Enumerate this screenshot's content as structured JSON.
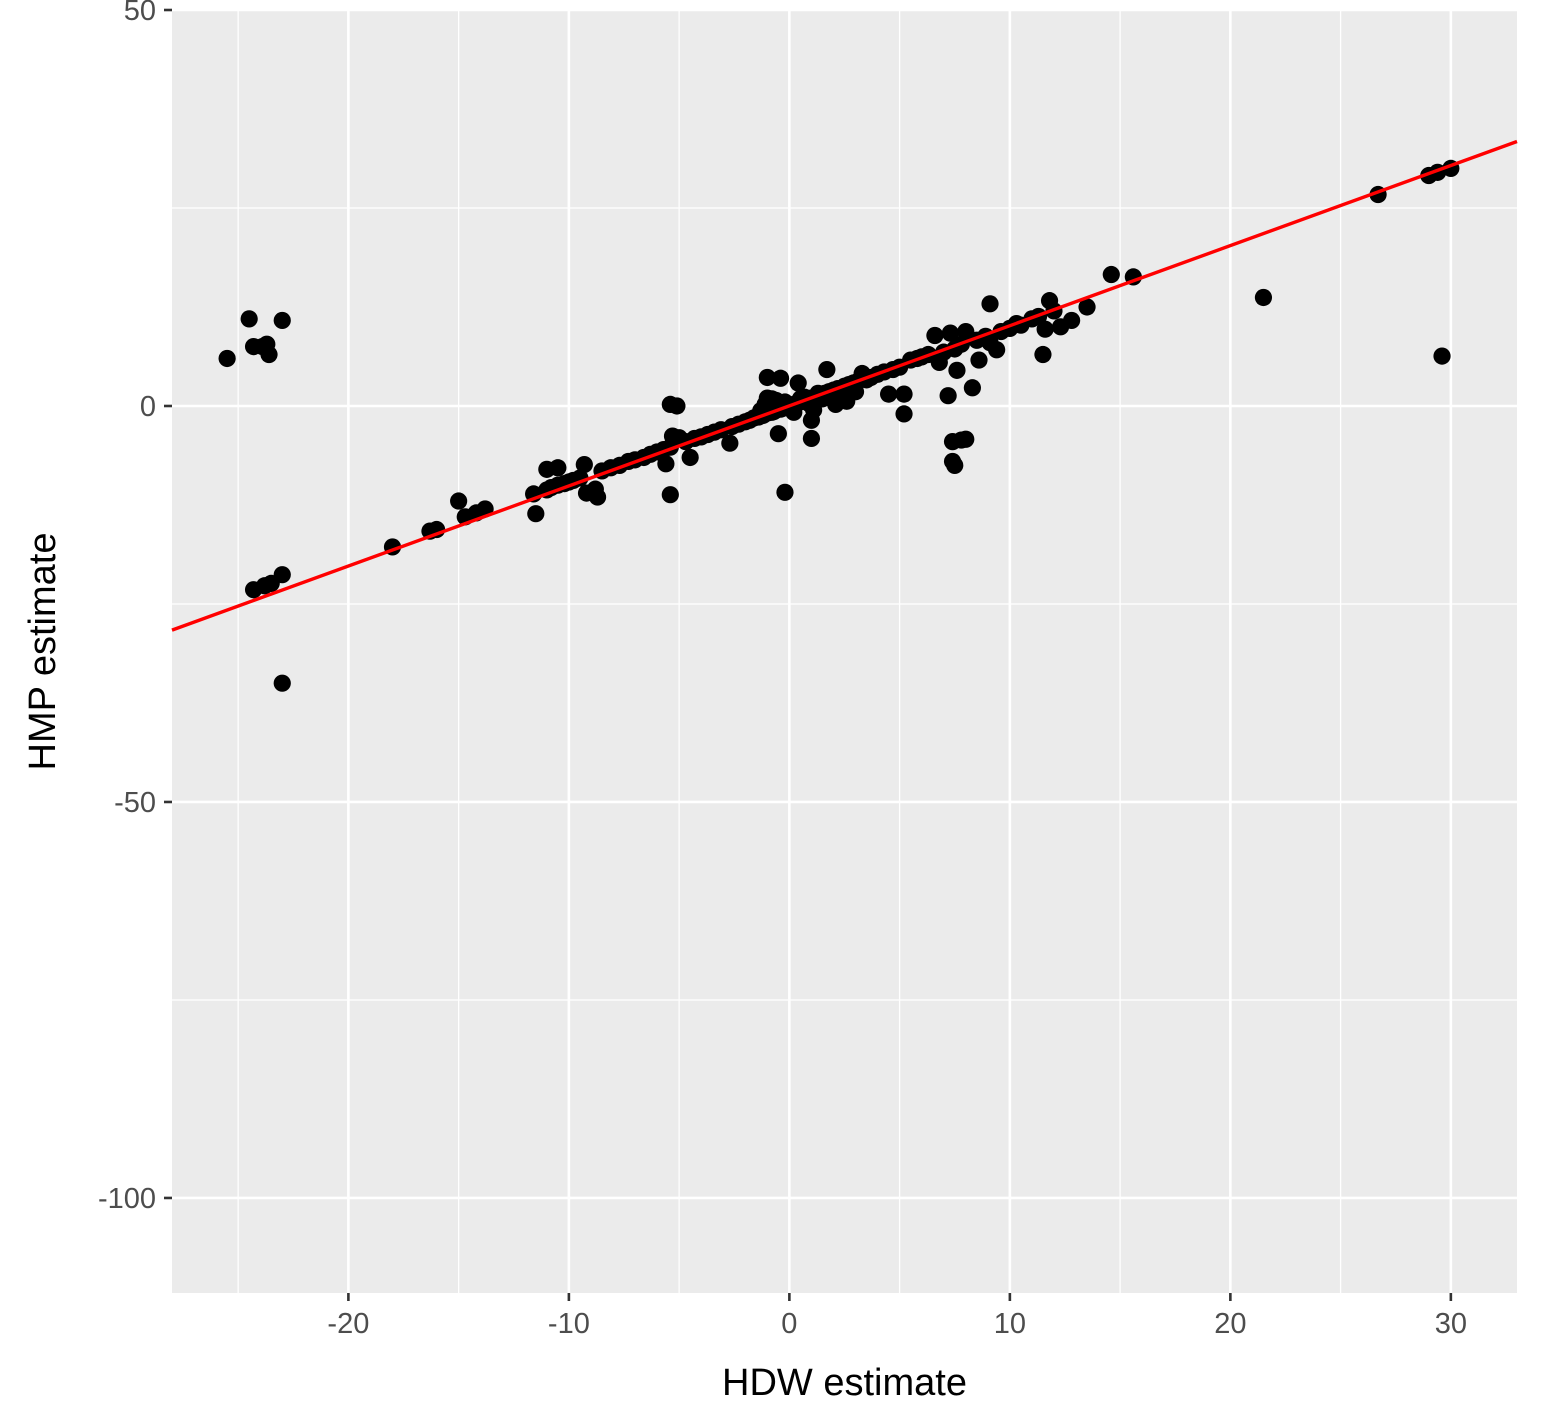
{
  "chart_data": {
    "type": "scatter",
    "title": "",
    "xlabel": "HDW estimate",
    "ylabel": "HMP estimate",
    "xlim": [
      -28,
      33
    ],
    "ylim": [
      -112,
      50
    ],
    "x_ticks": [
      -20,
      -10,
      0,
      10,
      20,
      30
    ],
    "x_tick_labels": [
      "-20",
      "-10",
      "0",
      "10",
      "20",
      "30"
    ],
    "y_ticks": [
      -100,
      -50,
      0,
      50
    ],
    "y_tick_labels": [
      "-100",
      "-50",
      "0",
      "50"
    ],
    "grid": true,
    "legend": "none",
    "colors": {
      "panel": "#ebebeb",
      "grid": "#ffffff",
      "points": "#000000",
      "fit_line": "#ff0000"
    },
    "fit_line": {
      "x": [
        -28,
        33
      ],
      "y": [
        -28.3,
        33.4
      ]
    },
    "points": [
      [
        -25.5,
        6.0
      ],
      [
        -24.5,
        11.0
      ],
      [
        -24.3,
        7.5
      ],
      [
        -23.9,
        7.5
      ],
      [
        -23.7,
        7.8
      ],
      [
        -23.6,
        6.5
      ],
      [
        -23.0,
        10.8
      ],
      [
        -24.3,
        -23.2
      ],
      [
        -23.8,
        -22.7
      ],
      [
        -23.5,
        -22.4
      ],
      [
        -23.0,
        -21.3
      ],
      [
        -23.0,
        -35.0
      ],
      [
        -18.0,
        -17.8
      ],
      [
        -16.3,
        -15.8
      ],
      [
        -16.0,
        -15.6
      ],
      [
        -15.0,
        -12.0
      ],
      [
        -14.7,
        -14.0
      ],
      [
        -14.2,
        -13.5
      ],
      [
        -13.8,
        -13.0
      ],
      [
        -11.6,
        -11.1
      ],
      [
        -11.5,
        -13.6
      ],
      [
        -11.0,
        -10.6
      ],
      [
        -10.8,
        -10.3
      ],
      [
        -10.5,
        -10.0
      ],
      [
        -10.2,
        -9.8
      ],
      [
        -10.0,
        -9.6
      ],
      [
        -9.8,
        -9.4
      ],
      [
        -9.5,
        -9.1
      ],
      [
        -11.0,
        -8.0
      ],
      [
        -10.5,
        -7.8
      ],
      [
        -9.3,
        -7.4
      ],
      [
        -9.2,
        -11.0
      ],
      [
        -8.8,
        -10.5
      ],
      [
        -8.7,
        -11.5
      ],
      [
        -8.5,
        -8.2
      ],
      [
        -8.1,
        -7.8
      ],
      [
        -7.7,
        -7.5
      ],
      [
        -7.3,
        -7.0
      ],
      [
        -7.0,
        -6.8
      ],
      [
        -6.6,
        -6.5
      ],
      [
        -6.3,
        -6.1
      ],
      [
        -6.0,
        -5.8
      ],
      [
        -5.7,
        -5.5
      ],
      [
        -5.4,
        -5.2
      ],
      [
        -5.6,
        -7.3
      ],
      [
        -5.4,
        -11.2
      ],
      [
        -5.4,
        0.2
      ],
      [
        -5.1,
        0.0
      ],
      [
        -5.3,
        -3.8
      ],
      [
        -5.0,
        -4.0
      ],
      [
        -4.7,
        -4.5
      ],
      [
        -4.5,
        -6.5
      ],
      [
        -4.3,
        -4.1
      ],
      [
        -4.0,
        -3.9
      ],
      [
        -3.7,
        -3.6
      ],
      [
        -3.4,
        -3.3
      ],
      [
        -3.1,
        -3.0
      ],
      [
        -2.7,
        -4.7
      ],
      [
        -2.6,
        -2.6
      ],
      [
        -2.3,
        -2.3
      ],
      [
        -2.0,
        -2.0
      ],
      [
        -1.8,
        -1.8
      ],
      [
        -1.6,
        -1.5
      ],
      [
        -1.4,
        -1.4
      ],
      [
        -1.3,
        -0.6
      ],
      [
        -1.2,
        -1.2
      ],
      [
        -1.1,
        0.2
      ],
      [
        -1.0,
        1.0
      ],
      [
        -1.0,
        -0.9
      ],
      [
        -0.9,
        0.5
      ],
      [
        -0.8,
        -0.8
      ],
      [
        -0.8,
        0.9
      ],
      [
        -0.7,
        -0.7
      ],
      [
        -0.6,
        -0.5
      ],
      [
        -0.6,
        0.7
      ],
      [
        -0.5,
        -0.4
      ],
      [
        -0.5,
        -3.5
      ],
      [
        -0.4,
        -0.4
      ],
      [
        -0.4,
        3.5
      ],
      [
        -0.3,
        -0.3
      ],
      [
        -0.2,
        -0.2
      ],
      [
        -0.2,
        0.5
      ],
      [
        -1.0,
        3.6
      ],
      [
        -0.2,
        -10.9
      ],
      [
        0.0,
        0.0
      ],
      [
        0.2,
        0.2
      ],
      [
        0.2,
        -0.8
      ],
      [
        0.4,
        0.4
      ],
      [
        0.4,
        2.9
      ],
      [
        0.5,
        0.9
      ],
      [
        0.6,
        0.6
      ],
      [
        0.7,
        1.1
      ],
      [
        0.8,
        0.8
      ],
      [
        0.9,
        0.3
      ],
      [
        1.0,
        1.0
      ],
      [
        1.0,
        -1.8
      ],
      [
        1.0,
        -4.1
      ],
      [
        1.1,
        -0.5
      ],
      [
        1.2,
        1.2
      ],
      [
        1.3,
        1.6
      ],
      [
        1.4,
        1.4
      ],
      [
        1.5,
        0.9
      ],
      [
        1.6,
        1.6
      ],
      [
        1.7,
        4.6
      ],
      [
        1.8,
        1.8
      ],
      [
        2.0,
        2.0
      ],
      [
        2.1,
        0.2
      ],
      [
        2.2,
        2.2
      ],
      [
        2.3,
        1.6
      ],
      [
        2.5,
        2.5
      ],
      [
        2.6,
        0.6
      ],
      [
        2.7,
        2.7
      ],
      [
        2.9,
        2.9
      ],
      [
        3.0,
        1.8
      ],
      [
        3.1,
        3.1
      ],
      [
        3.3,
        4.1
      ],
      [
        3.5,
        3.3
      ],
      [
        3.7,
        3.6
      ],
      [
        4.0,
        4.0
      ],
      [
        4.3,
        4.3
      ],
      [
        4.5,
        1.5
      ],
      [
        4.7,
        4.6
      ],
      [
        5.0,
        4.9
      ],
      [
        5.2,
        1.5
      ],
      [
        5.2,
        -1.0
      ],
      [
        5.5,
        5.8
      ],
      [
        5.8,
        6.0
      ],
      [
        6.0,
        6.2
      ],
      [
        6.3,
        6.5
      ],
      [
        6.6,
        8.9
      ],
      [
        6.8,
        5.5
      ],
      [
        7.0,
        6.8
      ],
      [
        7.2,
        1.3
      ],
      [
        7.3,
        9.2
      ],
      [
        7.4,
        -4.5
      ],
      [
        7.4,
        -7.0
      ],
      [
        7.5,
        7.2
      ],
      [
        7.5,
        -7.5
      ],
      [
        7.6,
        4.5
      ],
      [
        7.8,
        7.8
      ],
      [
        7.8,
        -4.3
      ],
      [
        8.0,
        -4.2
      ],
      [
        8.0,
        9.4
      ],
      [
        8.3,
        2.3
      ],
      [
        8.5,
        8.3
      ],
      [
        8.6,
        5.8
      ],
      [
        8.9,
        8.8
      ],
      [
        9.1,
        8.0
      ],
      [
        9.1,
        12.9
      ],
      [
        9.4,
        7.1
      ],
      [
        9.6,
        9.4
      ],
      [
        10.0,
        9.8
      ],
      [
        10.3,
        10.4
      ],
      [
        10.5,
        10.2
      ],
      [
        11.0,
        11.0
      ],
      [
        11.3,
        11.3
      ],
      [
        11.5,
        6.5
      ],
      [
        11.6,
        9.7
      ],
      [
        11.8,
        13.3
      ],
      [
        12.0,
        12.0
      ],
      [
        12.3,
        10.0
      ],
      [
        12.8,
        10.8
      ],
      [
        13.5,
        12.5
      ],
      [
        14.6,
        16.6
      ],
      [
        15.6,
        16.3
      ],
      [
        21.5,
        13.7
      ],
      [
        26.7,
        26.7
      ],
      [
        29.0,
        29.1
      ],
      [
        29.4,
        29.5
      ],
      [
        29.6,
        6.3
      ],
      [
        30.0,
        30.0
      ]
    ]
  }
}
